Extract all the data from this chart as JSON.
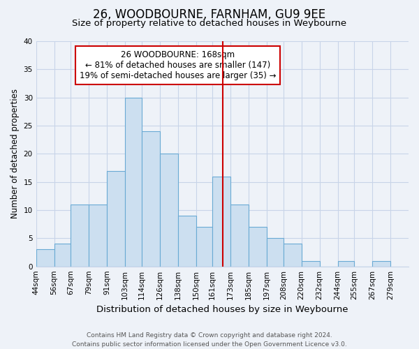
{
  "title": "26, WOODBOURNE, FARNHAM, GU9 9EE",
  "subtitle": "Size of property relative to detached houses in Weybourne",
  "xlabel": "Distribution of detached houses by size in Weybourne",
  "ylabel": "Number of detached properties",
  "bin_labels": [
    "44sqm",
    "56sqm",
    "67sqm",
    "79sqm",
    "91sqm",
    "103sqm",
    "114sqm",
    "126sqm",
    "138sqm",
    "150sqm",
    "161sqm",
    "173sqm",
    "185sqm",
    "197sqm",
    "208sqm",
    "220sqm",
    "232sqm",
    "244sqm",
    "255sqm",
    "267sqm",
    "279sqm"
  ],
  "bin_edges": [
    44,
    56,
    67,
    79,
    91,
    103,
    114,
    126,
    138,
    150,
    161,
    173,
    185,
    197,
    208,
    220,
    232,
    244,
    255,
    267,
    279
  ],
  "bar_heights": [
    3,
    4,
    11,
    11,
    17,
    30,
    24,
    20,
    9,
    7,
    16,
    11,
    7,
    5,
    4,
    1,
    0,
    1,
    0,
    1
  ],
  "bar_color": "#ccdff0",
  "bar_edgecolor": "#6aaad4",
  "property_size": 168,
  "property_line_color": "#cc0000",
  "annotation_title": "26 WOODBOURNE: 168sqm",
  "annotation_line1": "← 81% of detached houses are smaller (147)",
  "annotation_line2": "19% of semi-detached houses are larger (35) →",
  "annotation_box_edgecolor": "#cc0000",
  "ylim": [
    0,
    40
  ],
  "yticks": [
    0,
    5,
    10,
    15,
    20,
    25,
    30,
    35,
    40
  ],
  "footer_line1": "Contains HM Land Registry data © Crown copyright and database right 2024.",
  "footer_line2": "Contains public sector information licensed under the Open Government Licence v3.0.",
  "background_color": "#eef2f8",
  "grid_color": "#c8d4e8",
  "title_fontsize": 12,
  "subtitle_fontsize": 9.5,
  "xlabel_fontsize": 9.5,
  "ylabel_fontsize": 8.5,
  "tick_fontsize": 7.5,
  "footer_fontsize": 6.5,
  "annotation_fontsize": 8.5
}
